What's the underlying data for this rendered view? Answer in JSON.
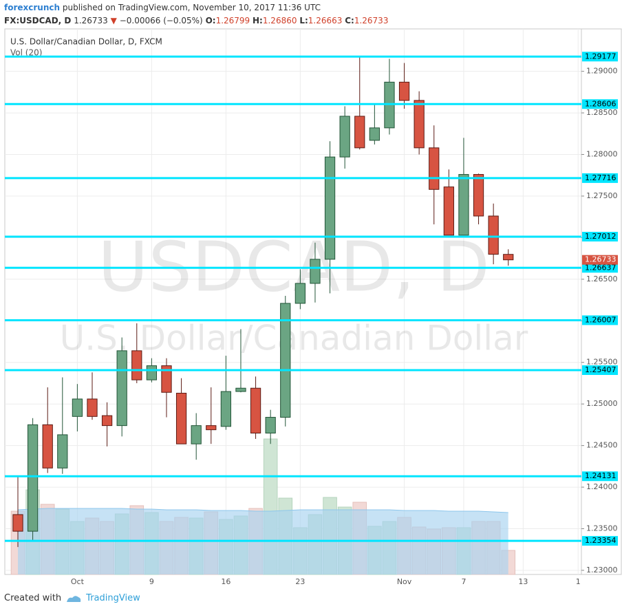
{
  "header": {
    "publisher": "forexcrunch",
    "published": "published on TradingView.com, November 10, 2017 11:36 UTC",
    "symbol": "FX:USDCAD, D",
    "last": "1.26733",
    "arrow": "▼",
    "change": "−0.00066 (−0.05%)",
    "ohlc": [
      {
        "key": "O:",
        "value": "1.26799"
      },
      {
        "key": "H:",
        "value": "1.26860"
      },
      {
        "key": "L:",
        "value": "1.26663"
      },
      {
        "key": "C:",
        "value": "1.26733"
      }
    ]
  },
  "footer": {
    "created": "Created with",
    "brand": "TradingView"
  },
  "chart_data": {
    "type": "candlestick",
    "title": "U.S. Dollar/Canadian Dollar, D, FXCM",
    "subtitle": "Vol (20)",
    "watermark": [
      "USDCAD, D",
      "U.S. Dollar/Canadian Dollar"
    ],
    "open": [
      1.2367,
      1.2347,
      1.2475,
      1.2423,
      1.2485,
      1.2506,
      1.2486,
      1.2474,
      1.2564,
      1.2529,
      1.2546,
      1.2513,
      1.2452,
      1.2474,
      1.2473,
      1.2515,
      1.2519,
      1.2465,
      1.2484,
      1.2621,
      1.2645,
      1.2674,
      1.2797,
      1.2846,
      1.2817,
      1.2832,
      1.2887,
      1.2865,
      1.2808,
      1.2761,
      1.2703,
      1.2776,
      1.2726,
      1.26799
    ],
    "high": [
      1.2413,
      1.2483,
      1.252,
      1.2532,
      1.2524,
      1.2538,
      1.2502,
      1.258,
      1.2597,
      1.2555,
      1.2555,
      1.2531,
      1.2489,
      1.252,
      1.2558,
      1.259,
      1.2533,
      1.2493,
      1.263,
      1.2662,
      1.2694,
      1.2816,
      1.2858,
      1.2917,
      1.286,
      1.2915,
      1.291,
      1.2876,
      1.2835,
      1.2782,
      1.282,
      1.2777,
      1.2741,
      1.2686
    ],
    "low": [
      1.2328,
      1.2336,
      1.2417,
      1.2416,
      1.2467,
      1.2481,
      1.2449,
      1.2461,
      1.2525,
      1.2526,
      1.2484,
      1.2452,
      1.2433,
      1.2452,
      1.2469,
      1.2514,
      1.2458,
      1.2452,
      1.2473,
      1.2614,
      1.2622,
      1.2633,
      1.2783,
      1.2806,
      1.2812,
      1.2824,
      1.2855,
      1.28,
      1.2716,
      1.2703,
      1.2703,
      1.2716,
      1.2668,
      1.26663
    ],
    "close": [
      1.2347,
      1.2475,
      1.2423,
      1.2463,
      1.2506,
      1.2485,
      1.2474,
      1.2564,
      1.2529,
      1.2546,
      1.2514,
      1.2452,
      1.2474,
      1.2469,
      1.2515,
      1.2519,
      1.2465,
      1.2484,
      1.2621,
      1.2645,
      1.2674,
      1.2797,
      1.2846,
      1.2808,
      1.2832,
      1.2887,
      1.2865,
      1.2808,
      1.2758,
      1.2703,
      1.2776,
      1.2726,
      1.268,
      1.26733
    ],
    "volume": [
      92,
      123,
      102,
      95,
      77,
      82,
      77,
      88,
      100,
      90,
      77,
      83,
      82,
      91,
      80,
      85,
      96,
      197,
      111,
      68,
      87,
      112,
      98,
      105,
      70,
      77,
      83,
      69,
      66,
      68,
      68,
      77,
      77,
      35
    ],
    "volume_ma": [
      94,
      95,
      96,
      96,
      96,
      96,
      96,
      96,
      95,
      95,
      94,
      94,
      94,
      93,
      93,
      93,
      92,
      92,
      93,
      94,
      94,
      94,
      94,
      94,
      94,
      94,
      93,
      93,
      93,
      92,
      92,
      92,
      91,
      90
    ],
    "volume_lim": [
      0,
      200
    ],
    "up_color": "#6ba583",
    "down_color": "#d75442",
    "up_border": "#225437",
    "down_border": "#5b1a13",
    "volume_up_color": "#cfe5d4",
    "volume_down_color": "#f2d9d6",
    "volume_ma_color": "#a7d3f0",
    "xlim": [
      -0.88,
      37.92
    ],
    "xticks": [
      {
        "value": 4,
        "label": "Oct"
      },
      {
        "value": 9,
        "label": "9"
      },
      {
        "value": 14,
        "label": "16"
      },
      {
        "value": 19,
        "label": "23"
      },
      {
        "value": 26,
        "label": "Nov"
      },
      {
        "value": 30,
        "label": "7"
      },
      {
        "value": 34,
        "label": "13"
      },
      {
        "value": 37.7,
        "label": "1"
      }
    ],
    "ylim": [
      1.2295,
      1.2951
    ],
    "yticks": [
      {
        "value": 1.23,
        "label": "1.23000"
      },
      {
        "value": 1.235,
        "label": "1.23500"
      },
      {
        "value": 1.24,
        "label": "1.24000"
      },
      {
        "value": 1.245,
        "label": "1.24500"
      },
      {
        "value": 1.25,
        "label": "1.25000"
      },
      {
        "value": 1.255,
        "label": "1.25500"
      },
      {
        "value": 1.26,
        "label": "1.26000"
      },
      {
        "value": 1.265,
        "label": "1.26500"
      },
      {
        "value": 1.27,
        "label": "1.27000"
      },
      {
        "value": 1.275,
        "label": "1.27500"
      },
      {
        "value": 1.28,
        "label": "1.28000"
      },
      {
        "value": 1.285,
        "label": "1.28500"
      },
      {
        "value": 1.29,
        "label": "1.29000"
      }
    ],
    "levels": [
      {
        "value": 1.29177,
        "label": "1.29177"
      },
      {
        "value": 1.28606,
        "label": "1.28606"
      },
      {
        "value": 1.27716,
        "label": "1.27716"
      },
      {
        "value": 1.27012,
        "label": "1.27012"
      },
      {
        "value": 1.26637,
        "label": "1.26637"
      },
      {
        "value": 1.26007,
        "label": "1.26007"
      },
      {
        "value": 1.25407,
        "label": "1.25407"
      },
      {
        "value": 1.24131,
        "label": "1.24131"
      },
      {
        "value": 1.23354,
        "label": "1.23354"
      }
    ],
    "level_color": "#00e5ff",
    "last_price": {
      "value": 1.26733,
      "label": "1.26733"
    },
    "last_price_color": "#d75442",
    "grid": true
  }
}
